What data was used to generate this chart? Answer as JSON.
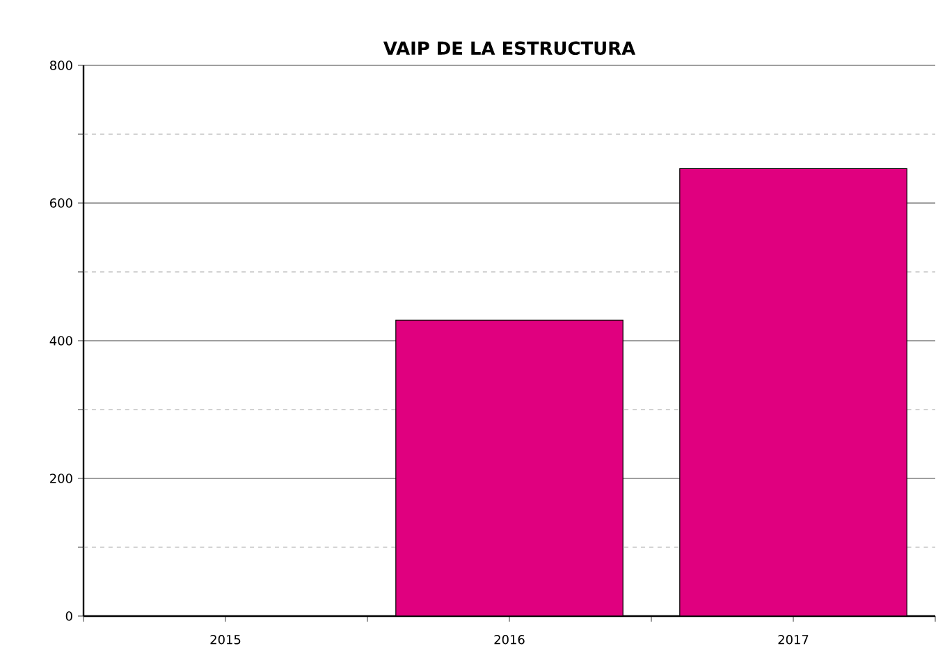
{
  "chart_data": {
    "type": "bar",
    "title": "VAIP DE LA ESTRUCTURA",
    "categories": [
      "2015",
      "2016",
      "2017"
    ],
    "values": [
      null,
      430,
      650
    ],
    "color": "#e0007f",
    "ylim": [
      0,
      800
    ],
    "yticks": [
      0,
      {
        "value": 100,
        "label": null
      },
      200,
      {
        "value": 300,
        "label": null
      },
      400,
      {
        "value": 500,
        "label": null
      },
      600,
      {
        "value": 700,
        "label": null
      },
      800
    ],
    "grid": "y"
  }
}
